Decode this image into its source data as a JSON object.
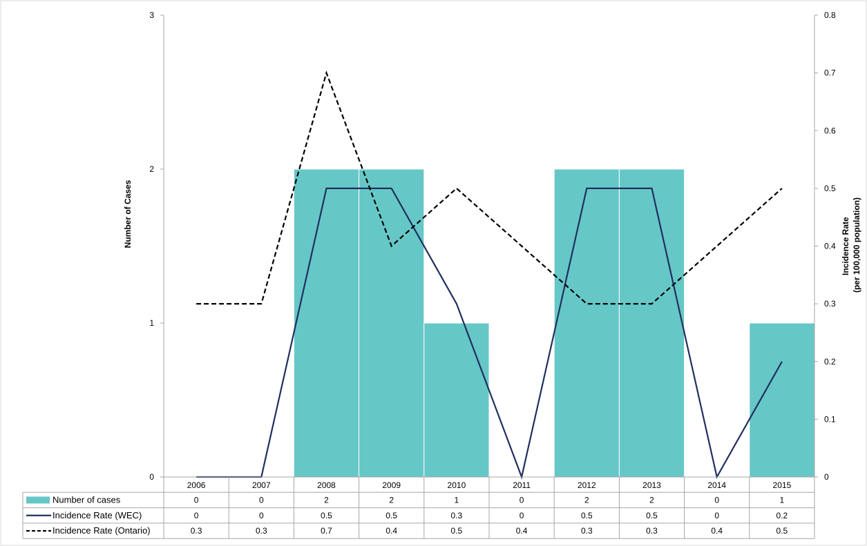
{
  "chart_data": {
    "type": "bar",
    "categories": [
      "2006",
      "2007",
      "2008",
      "2009",
      "2010",
      "2011",
      "2012",
      "2013",
      "2014",
      "2015"
    ],
    "series": [
      {
        "name": "Number of cases",
        "type": "bar",
        "axis": "left",
        "color": "#66c7c7",
        "values": [
          0,
          0,
          2,
          2,
          1,
          0,
          2,
          2,
          0,
          1
        ]
      },
      {
        "name": "Incidence Rate (WEC)",
        "type": "line",
        "axis": "right",
        "color": "#1f2f5e",
        "dash": "solid",
        "values": [
          0,
          0,
          0.5,
          0.5,
          0.3,
          0,
          0.5,
          0.5,
          0,
          0.2
        ]
      },
      {
        "name": "Incidence Rate (Ontario)",
        "type": "line",
        "axis": "right",
        "color": "#000000",
        "dash": "dashed",
        "values": [
          0.3,
          0.3,
          0.7,
          0.4,
          0.5,
          0.4,
          0.3,
          0.3,
          0.4,
          0.5
        ]
      }
    ],
    "table_values": [
      [
        "0",
        "0",
        "2",
        "2",
        "1",
        "0",
        "2",
        "2",
        "0",
        "1"
      ],
      [
        "0",
        "0",
        "0.5",
        "0.5",
        "0.3",
        "0",
        "0.5",
        "0.5",
        "0",
        "0.2"
      ],
      [
        "0.3",
        "0.3",
        "0.7",
        "0.4",
        "0.5",
        "0.4",
        "0.3",
        "0.3",
        "0.4",
        "0.5"
      ]
    ],
    "ylabel": "Number of Cases",
    "ylabel_right": [
      "Incidence Rate",
      "(per 100,000 population)"
    ],
    "ylim": [
      0,
      3
    ],
    "yticks": [
      "0",
      "1",
      "2",
      "3"
    ],
    "ylim_right": [
      0,
      0.8
    ],
    "yticks_right": [
      "0",
      "0.1",
      "0.2",
      "0.3",
      "0.4",
      "0.5",
      "0.6",
      "0.7",
      "0.8"
    ],
    "grid": false,
    "legend": "data table (bottom)"
  }
}
